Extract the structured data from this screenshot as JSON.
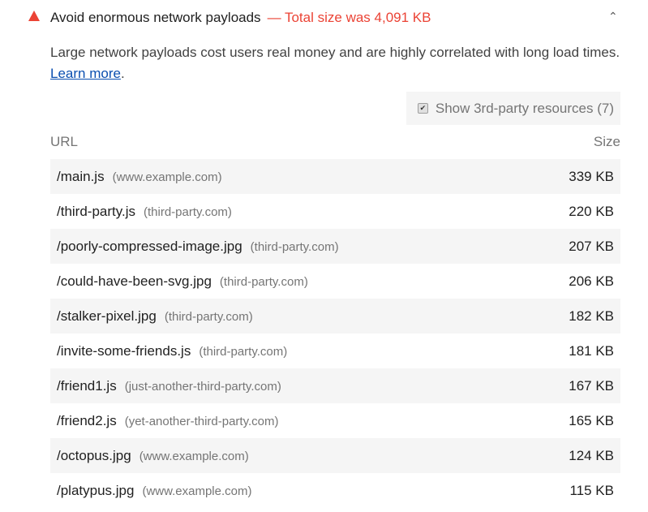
{
  "audit": {
    "title": "Avoid enormous network payloads",
    "display_value": "— Total size was 4,091 KB",
    "status_color": "#eb4335",
    "icon": "warning-triangle-icon",
    "expanded": true
  },
  "description": {
    "text": "Large network payloads cost users real money and are highly correlated with long load times. ",
    "link": "Learn more",
    "suffix": "."
  },
  "filter": {
    "label": "Show 3rd-party resources (7)",
    "checked": true
  },
  "table": {
    "headers": {
      "url": "URL",
      "size": "Size"
    },
    "rows": [
      {
        "url": "/main.js",
        "host": "(www.example.com)",
        "size": "339 KB"
      },
      {
        "url": "/third-party.js",
        "host": "(third-party.com)",
        "size": "220 KB"
      },
      {
        "url": "/poorly-compressed-image.jpg",
        "host": "(third-party.com)",
        "size": "207 KB"
      },
      {
        "url": "/could-have-been-svg.jpg",
        "host": "(third-party.com)",
        "size": "206 KB"
      },
      {
        "url": "/stalker-pixel.jpg",
        "host": "(third-party.com)",
        "size": "182 KB"
      },
      {
        "url": "/invite-some-friends.js",
        "host": "(third-party.com)",
        "size": "181 KB"
      },
      {
        "url": "/friend1.js",
        "host": "(just-another-third-party.com)",
        "size": "167 KB"
      },
      {
        "url": "/friend2.js",
        "host": "(yet-another-third-party.com)",
        "size": "165 KB"
      },
      {
        "url": "/octopus.jpg",
        "host": "(www.example.com)",
        "size": "124 KB"
      },
      {
        "url": "/platypus.jpg",
        "host": "(www.example.com)",
        "size": "115 KB"
      }
    ]
  }
}
